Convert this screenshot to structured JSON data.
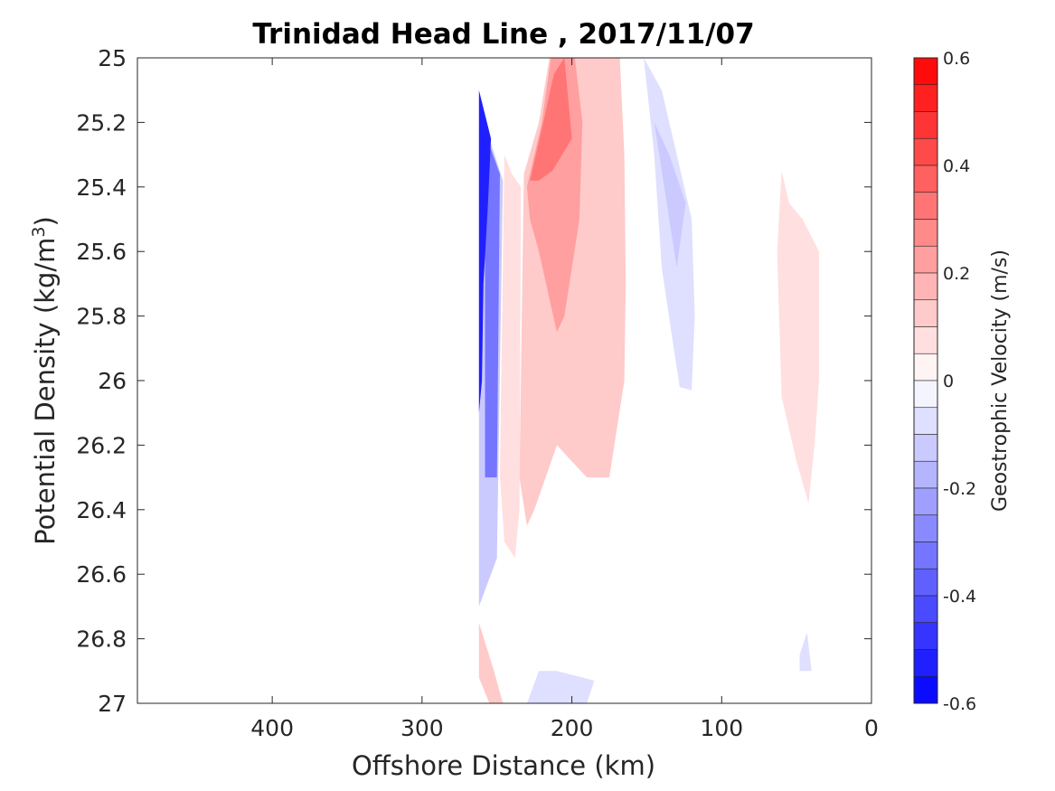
{
  "chart_data": {
    "type": "heatmap",
    "title": "Trinidad Head Line , 2017/11/07",
    "xlabel": "Offshore Distance (km)",
    "ylabel_main": "Potential Density (kg/m",
    "ylabel_sup": "3",
    "ylabel_close": ")",
    "xlim": [
      490,
      0
    ],
    "ylim": [
      25,
      27
    ],
    "x_reversed": true,
    "y_reversed": true,
    "x_ticks": [
      400,
      300,
      200,
      100,
      0
    ],
    "x_tick_labels": [
      "400",
      "300",
      "200",
      "100",
      "0"
    ],
    "y_ticks": [
      25,
      25.2,
      25.4,
      25.6,
      25.8,
      26,
      26.2,
      26.4,
      26.6,
      26.8,
      27
    ],
    "y_tick_labels": [
      "25",
      "25.2",
      "25.4",
      "25.6",
      "25.8",
      "26",
      "26.2",
      "26.4",
      "26.6",
      "26.8",
      "27"
    ],
    "colorbar": {
      "label": "Geostrophic Velocity (m/s)",
      "range": [
        -0.6,
        0.6
      ],
      "levels": 24,
      "ticks": [
        0.6,
        0.4,
        0.2,
        0,
        -0.2,
        -0.4,
        -0.6
      ],
      "tick_labels": [
        "0.6",
        "0.4",
        "0.2",
        "0",
        "-0.2",
        "-0.4",
        "-0.6"
      ],
      "negative_color": "#0000ff",
      "positive_color": "#ff0000",
      "zero_color": "#ffffff"
    },
    "regions": [
      {
        "value": -0.15,
        "points": [
          [
            262,
            25.2
          ],
          [
            262,
            26.7
          ],
          [
            250,
            26.55
          ],
          [
            246,
            25.38
          ],
          [
            255,
            25.25
          ]
        ]
      },
      {
        "value": -0.35,
        "points": [
          [
            262,
            25.12
          ],
          [
            258,
            25.18
          ],
          [
            258,
            26.3
          ],
          [
            250,
            26.3
          ],
          [
            248,
            25.36
          ],
          [
            255,
            25.27
          ]
        ]
      },
      {
        "value": -0.5,
        "points": [
          [
            262,
            25.1
          ],
          [
            254,
            25.25
          ],
          [
            256,
            25.45
          ],
          [
            259,
            25.7
          ],
          [
            260,
            26.0
          ],
          [
            262,
            26.1
          ]
        ]
      },
      {
        "value": 0.06,
        "points": [
          [
            240,
            25.36
          ],
          [
            245,
            25.3
          ],
          [
            248,
            26.3
          ],
          [
            245,
            26.5
          ],
          [
            238,
            26.55
          ],
          [
            235,
            26.4
          ],
          [
            234,
            25.4
          ]
        ]
      },
      {
        "value": 0.1,
        "points": [
          [
            232,
            25.36
          ],
          [
            222,
            25.2
          ],
          [
            215,
            25.0
          ],
          [
            168,
            25.0
          ],
          [
            165,
            25.3
          ],
          [
            164,
            25.7
          ],
          [
            165,
            26.0
          ],
          [
            175,
            26.3
          ],
          [
            190,
            26.3
          ],
          [
            210,
            26.2
          ],
          [
            225,
            26.4
          ],
          [
            230,
            26.45
          ],
          [
            235,
            26.3
          ]
        ]
      },
      {
        "value": 0.2,
        "points": [
          [
            230,
            25.4
          ],
          [
            220,
            25.2
          ],
          [
            214,
            25.0
          ],
          [
            198,
            25.0
          ],
          [
            193,
            25.2
          ],
          [
            195,
            25.5
          ],
          [
            205,
            25.8
          ],
          [
            210,
            25.85
          ],
          [
            222,
            25.6
          ],
          [
            228,
            25.5
          ]
        ]
      },
      {
        "value": 0.3,
        "points": [
          [
            228,
            25.38
          ],
          [
            220,
            25.22
          ],
          [
            212,
            25.05
          ],
          [
            205,
            25.0
          ],
          [
            200,
            25.25
          ],
          [
            213,
            25.35
          ],
          [
            222,
            25.38
          ]
        ]
      },
      {
        "value": -0.06,
        "points": [
          [
            152,
            25.0
          ],
          [
            145,
            25.3
          ],
          [
            140,
            25.65
          ],
          [
            132,
            25.9
          ],
          [
            128,
            26.02
          ],
          [
            120,
            26.03
          ],
          [
            118,
            25.8
          ],
          [
            120,
            25.5
          ],
          [
            130,
            25.3
          ],
          [
            140,
            25.1
          ]
        ]
      },
      {
        "value": -0.12,
        "points": [
          [
            145,
            25.2
          ],
          [
            135,
            25.5
          ],
          [
            130,
            25.65
          ],
          [
            124,
            25.45
          ],
          [
            135,
            25.3
          ]
        ]
      },
      {
        "value": 0.06,
        "points": [
          [
            60,
            25.35
          ],
          [
            55,
            25.45
          ],
          [
            46,
            25.5
          ],
          [
            35,
            25.6
          ],
          [
            35,
            26.0
          ],
          [
            38,
            26.2
          ],
          [
            42,
            26.38
          ],
          [
            50,
            26.25
          ],
          [
            60,
            26.05
          ],
          [
            63,
            25.6
          ]
        ]
      },
      {
        "value": 0.1,
        "points": [
          [
            262,
            26.75
          ],
          [
            252,
            26.9
          ],
          [
            246,
            27.0
          ],
          [
            255,
            27.0
          ],
          [
            262,
            26.92
          ]
        ]
      },
      {
        "value": -0.06,
        "points": [
          [
            230,
            27.0
          ],
          [
            222,
            26.9
          ],
          [
            210,
            26.9
          ],
          [
            193,
            26.92
          ],
          [
            185,
            26.93
          ],
          [
            190,
            27.0
          ]
        ]
      },
      {
        "value": -0.06,
        "points": [
          [
            48,
            26.85
          ],
          [
            43,
            26.78
          ],
          [
            40,
            26.9
          ],
          [
            48,
            26.9
          ]
        ]
      }
    ]
  }
}
